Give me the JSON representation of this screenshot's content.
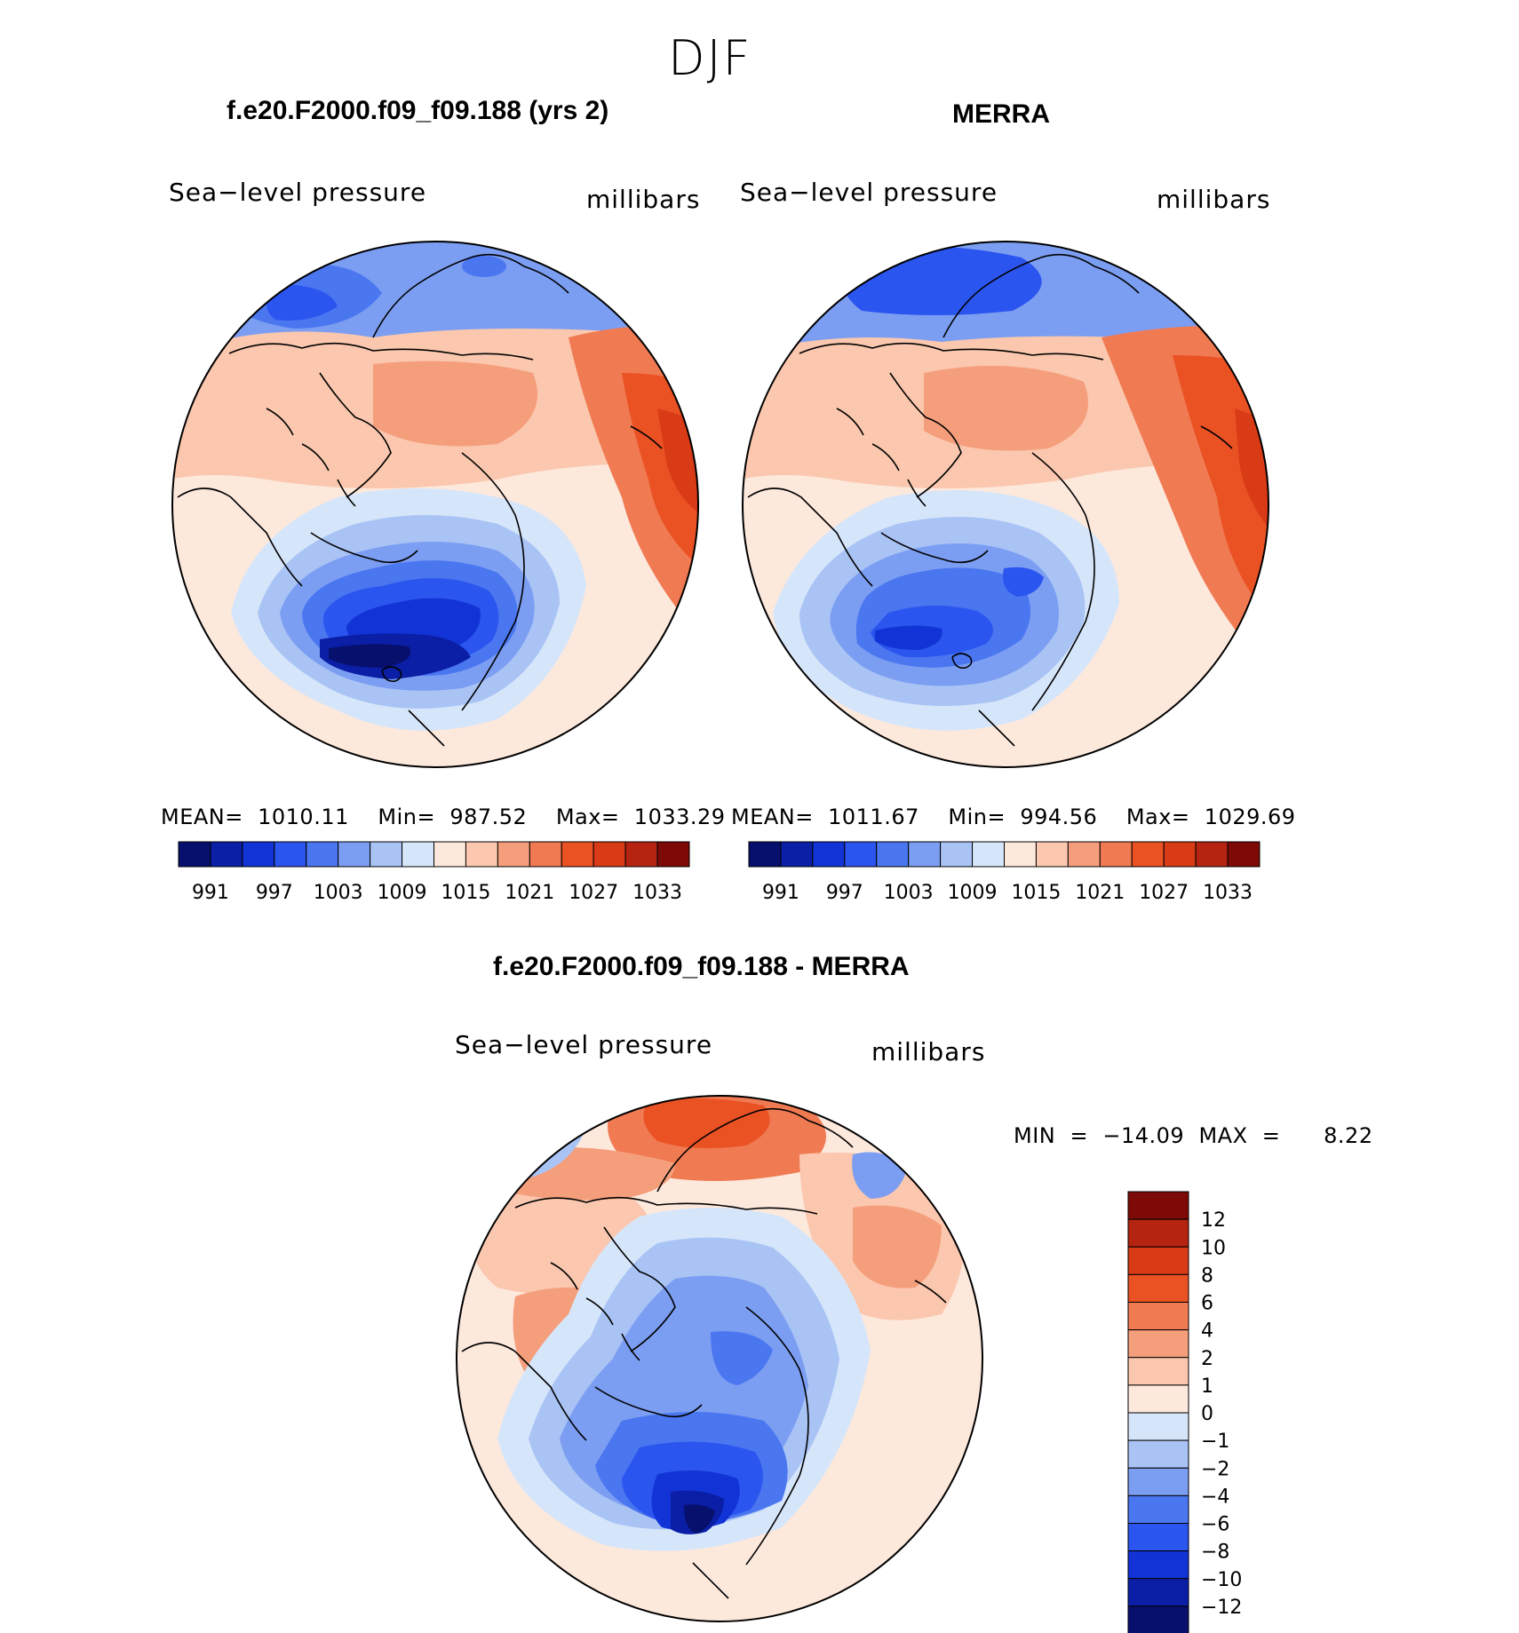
{
  "figure": {
    "season": "DJF",
    "panels": [
      {
        "title": "f.e20.F2000.f09_f09.188 (yrs 2)",
        "variable": "Sea−level pressure",
        "units": "millibars",
        "stats": "MEAN=  1010.11    Min=  987.52    Max=  1033.29",
        "colorbar_labels": [
          "991",
          "997",
          "1003",
          "1009",
          "1015",
          "1021",
          "1027",
          "1033"
        ]
      },
      {
        "title": "MERRA",
        "variable": "Sea−level pressure",
        "units": "millibars",
        "stats": "MEAN=  1011.67    Min=  994.56    Max=  1029.69",
        "colorbar_labels": [
          "991",
          "997",
          "1003",
          "1009",
          "1015",
          "1021",
          "1027",
          "1033"
        ]
      }
    ],
    "diff_panel": {
      "title": "f.e20.F2000.f09_f09.188 - MERRA",
      "variable": "Sea−level pressure",
      "units": "millibars",
      "stats": "MIN  =  −14.09  MAX  =      8.22",
      "colorbar_labels": [
        "12",
        "10",
        "8",
        "6",
        "4",
        "2",
        "1",
        "0",
        "−1",
        "−2",
        "−4",
        "−6",
        "−8",
        "−10",
        "−12"
      ]
    }
  },
  "colors": {
    "abs_scale": [
      "#08106e",
      "#0a1fa6",
      "#1234d6",
      "#2b55ef",
      "#4a76f0",
      "#7c9ef2",
      "#a9c3f5",
      "#d6e6fa",
      "#fde8dc",
      "#fbc7ae",
      "#f59e7c",
      "#f07a52",
      "#ea5224",
      "#d83b16",
      "#b52410",
      "#7e0a08"
    ],
    "diff_scale": [
      "#7e0a08",
      "#b52410",
      "#d83b16",
      "#ea5224",
      "#f07a52",
      "#f59e7c",
      "#fbc7ae",
      "#fde8dc",
      "#d6e6fa",
      "#a9c3f5",
      "#7c9ef2",
      "#4a76f0",
      "#2b55ef",
      "#1234d6",
      "#0a1fa6",
      "#08106e"
    ]
  }
}
